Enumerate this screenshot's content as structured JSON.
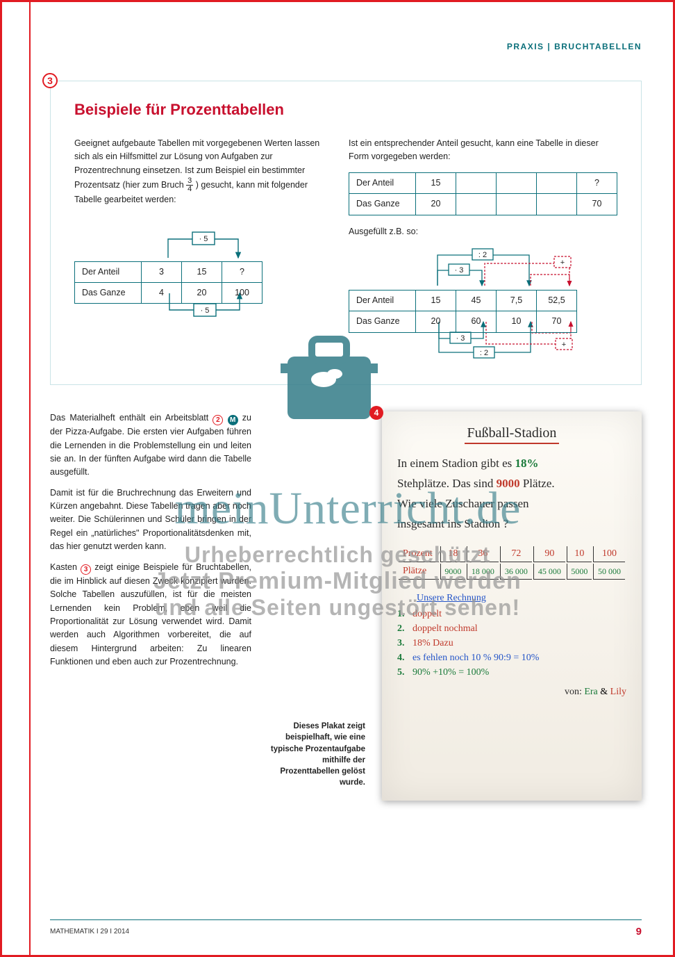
{
  "header": {
    "category": "PRAXIS | BRUCHTABELLEN"
  },
  "box": {
    "badge": "3",
    "title": "Beispiele für Prozenttabellen",
    "left_intro_a": "Geeignet aufgebaute Tabellen mit vorgegebenen Werten lassen sich als ein Hilfsmittel zur Lösung von Aufgaben zur Prozentrechnung einsetzen. Ist zum Beispiel ein bestimm­ter Prozentsatz (hier zum Bruch ",
    "left_intro_b": ") gesucht, kann mit fol­gender Tabelle gearbeitet werden:",
    "frac": {
      "num": "3",
      "den": "4"
    },
    "right_intro": "Ist ein entsprechender Anteil gesucht, kann eine Tabelle in dieser Form vorgegeben werden:",
    "right_fill": "Ausgefüllt z.B. so:",
    "labels": {
      "anteil": "Der Anteil",
      "ganze": "Das Ganze"
    },
    "table_left": {
      "anteil": [
        "3",
        "15",
        "?"
      ],
      "ganze": [
        "4",
        "20",
        "100"
      ],
      "op_top": "· 5",
      "op_bot": "· 5"
    },
    "table_r1": {
      "anteil": [
        "15",
        "",
        "",
        "",
        "?"
      ],
      "ganze": [
        "20",
        "",
        "",
        "",
        "70"
      ]
    },
    "table_r2": {
      "anteil": [
        "15",
        "45",
        "7,5",
        "52,5"
      ],
      "ganze": [
        "20",
        "60",
        "10",
        "70"
      ],
      "ops": {
        "div2": ": 2",
        "mul3": "· 3",
        "plus": "+"
      }
    }
  },
  "article": {
    "p1a": "Das Materialheft enthält ein Arbeitsblatt ",
    "p1b": " zu der Pizza-Aufgabe. Die ersten vier Auf­gaben führen die Lernenden in die Prob­lemstellung ein und leiten sie an. In der fünften Aufgabe wird dann die Tabelle aus­gefüllt.",
    "p2": "Damit ist für die Bruchrechnung das Er­weitern und Kürzen angebahnt. Diese Ta­bellen tragen aber noch weiter. Die Schü­lerinnen und Schüler bringen in der Regel ein „natürliches\" Proportionalitätsdenken mit, das hier genutzt werden kann.",
    "p3a": "Kasten ",
    "p3b": " zeigt einige Beispiele für Bruch­tabellen, die im Hinblick auf diesen Zweck konzipiert wurden. Solche Tabellen auszu­füllen, ist für die meisten Lernenden kein Problem, eben weil die Proportionalität zur Lösung verwendet wird. Damit wer­den auch Algorithmen vorbereitet, die auf diesem Hintergrund arbeiten: Zu linearen Funktionen und eben auch zur Prozent­rechnung.",
    "badge2": "2",
    "badgeM": "M",
    "badge3": "3"
  },
  "caption": "Dieses Plakat zeigt beispielhaft, wie eine typische Prozentaufgabe mithilfe der Prozenttabellen gelöst wurde.",
  "photo": {
    "badge": "4",
    "title": "Fußball-Stadion",
    "body": {
      "l1a": "In einem Stadion gibt es ",
      "l1b": "18%",
      "l2a": "Stehplätze. Das sind ",
      "l2b": "9000",
      "l2c": " Plätze.",
      "l3": "Wie viele Zuschauer passen",
      "l4": "insgesamt ins Stadion ?"
    },
    "table": {
      "row1_label": "Prozent",
      "row1": [
        "18",
        "36",
        "72",
        "90",
        "10",
        "100"
      ],
      "row2_label": "Plätze",
      "row2": [
        "9000",
        "18 000",
        "36 000",
        "45 000",
        "5000",
        "50 000"
      ]
    },
    "steps": {
      "title": "Unsere Rechnung",
      "items": [
        {
          "n": "1.",
          "t": "doppelt",
          "c": "t-red"
        },
        {
          "n": "2.",
          "t": "doppelt nochmal",
          "c": "t-red"
        },
        {
          "n": "3.",
          "t": "18% Dazu",
          "c": "t-red"
        },
        {
          "n": "4.",
          "t": "es fehlen noch 10 %  90:9 = 10%",
          "c": "t-blue"
        },
        {
          "n": "5.",
          "t": "90% +10% = 100%",
          "c": "t-green"
        }
      ]
    },
    "sign": {
      "von": "von: ",
      "a": "Era",
      "amp": " & ",
      "b": "Lily"
    }
  },
  "footer": {
    "left": "MATHEMATIK I 29 I 2014",
    "page": "9"
  },
  "watermark": {
    "script": "meinUnterricht.de",
    "l1": "Urheberrechtlich geschützt",
    "l2": "Jetzt Premium-Mitglied werden",
    "l3": "und alle Seiten ungestört sehen!"
  },
  "colors": {
    "teal": "#0a6f7a",
    "red": "#c8102e",
    "border_red": "#e11b22"
  }
}
